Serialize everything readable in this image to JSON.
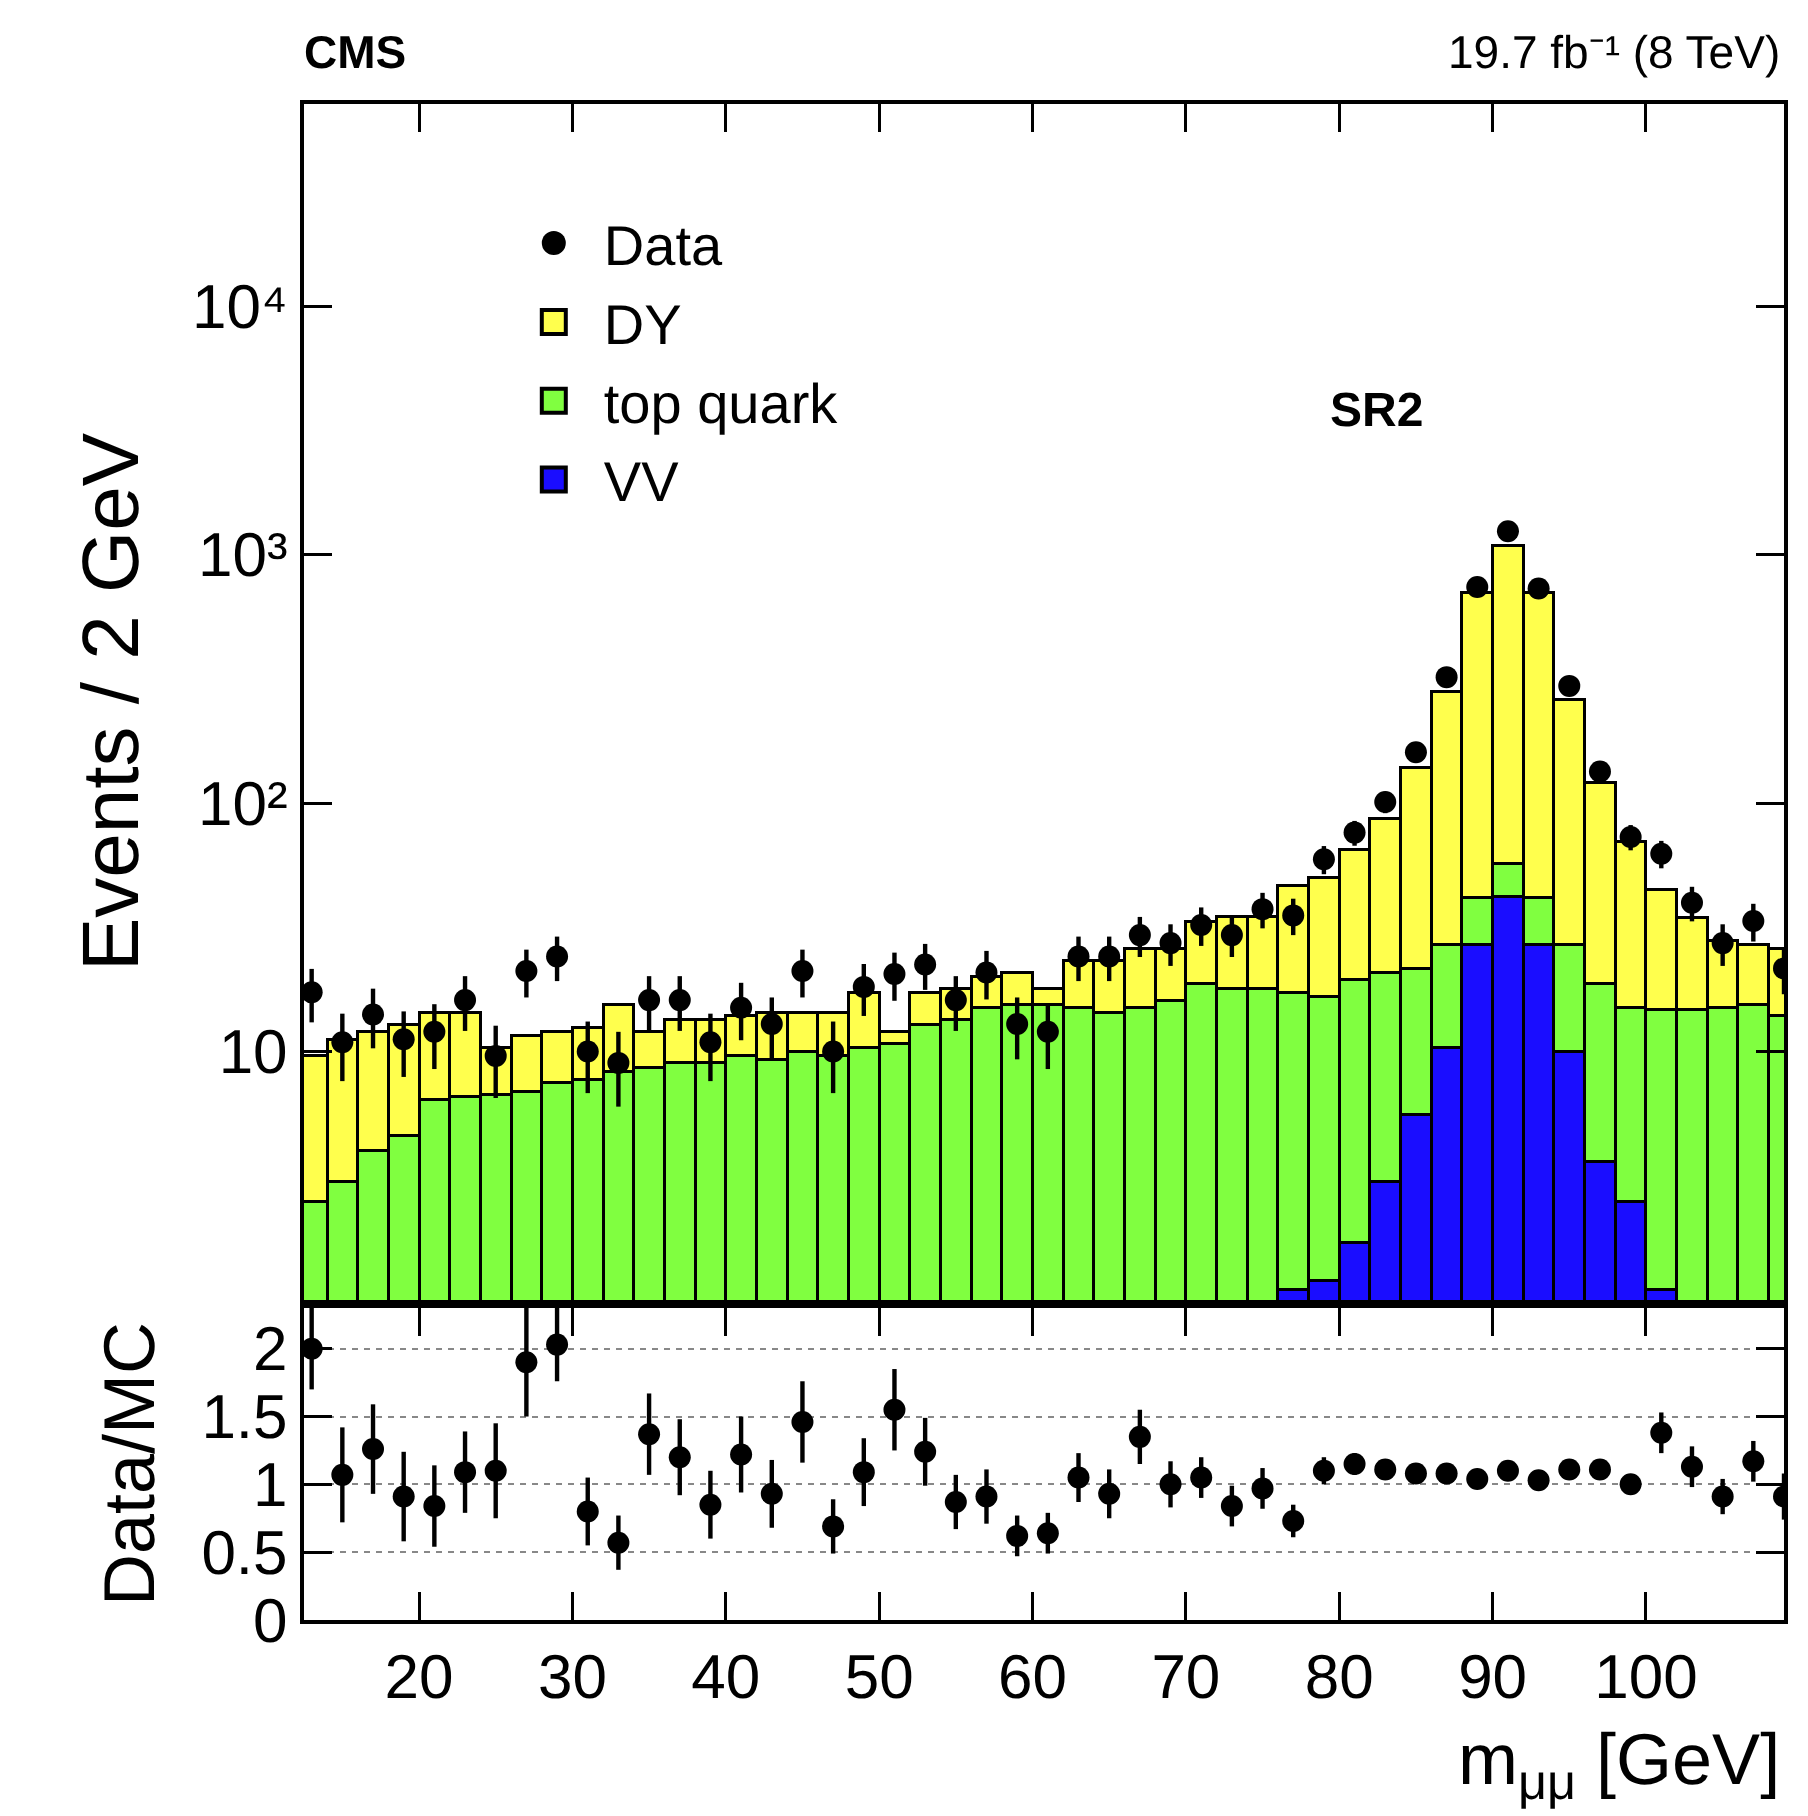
{
  "chart_data": [
    {
      "type": "bar",
      "title": "CMS",
      "subtitle": "19.7 fb⁻¹ (8 TeV)",
      "annotations": [
        "SR2"
      ],
      "ylabel": "Events / 2 GeV",
      "stacked": true,
      "log": "y",
      "legend": "top left",
      "marker": "circle",
      "tick_labels": "y",
      "x": [
        13,
        15,
        17,
        19,
        21,
        23,
        25,
        27,
        29,
        31,
        33,
        35,
        37,
        39,
        41,
        43,
        45,
        47,
        49,
        51,
        53,
        55,
        57,
        59,
        61,
        63,
        65,
        67,
        69,
        71,
        73,
        75,
        77,
        79,
        81,
        83,
        85,
        87,
        89,
        91,
        93,
        95,
        97,
        99,
        101,
        103,
        105,
        107,
        109
      ],
      "xlim": [
        12.5,
        109
      ],
      "xticks": [
        20,
        30,
        40,
        50,
        60,
        70,
        80,
        90,
        100
      ],
      "ylim": [
        1.0,
        65000
      ],
      "yticks": [
        10,
        {
          "value": 100,
          "label": "10²"
        },
        {
          "value": 1000,
          "label": "10³"
        },
        {
          "value": 10000,
          "label": "10⁴"
        }
      ],
      "series": [
        {
          "name": "VV",
          "color": "#1a0dff",
          "values": [
            null,
            null,
            null,
            null,
            null,
            null,
            null,
            null,
            null,
            null,
            null,
            null,
            null,
            null,
            null,
            null,
            null,
            null,
            null,
            null,
            null,
            null,
            null,
            null,
            null,
            null,
            null,
            null,
            null,
            null,
            null,
            null,
            1.1,
            1.2,
            1.7,
            3.0,
            5.6,
            10.4,
            27,
            42,
            27,
            10,
            3.6,
            2.5,
            1.1,
            null,
            null,
            null,
            null
          ]
        },
        {
          "name": "top quark",
          "color": "#80ff40",
          "values": [
            2.5,
            3.0,
            4.0,
            4.6,
            6.4,
            6.6,
            6.7,
            6.9,
            7.5,
            7.7,
            8.3,
            8.6,
            9.0,
            9.0,
            9.6,
            9.3,
            10.0,
            9.6,
            10.4,
            10.8,
            12.9,
            13.4,
            15.0,
            15.5,
            15.5,
            15.0,
            14.4,
            15.0,
            16.1,
            18.7,
            18.0,
            18.0,
            16.2,
            15.5,
            17.7,
            17.8,
            16.0,
            16.5,
            14.8,
            14.9,
            14.8,
            16.9,
            15.1,
            12.5,
            13.6,
            14.7,
            15.0,
            15.5,
            13.9
          ]
        },
        {
          "name": "DY",
          "color": "#ffff4d",
          "values": [
            7.1,
            8.2,
            8.0,
            8.3,
            8.0,
            7.8,
            3.7,
            4.7,
            4.5,
            4.8,
            7.2,
            3.4,
            4.4,
            4.4,
            4.3,
            5.1,
            4.4,
            4.8,
            6.9,
            1.2,
            4.4,
            4.6,
            5.1,
            5.3,
            2.5,
            8.2,
            8.8,
            10.9,
            9.8,
            14.8,
            16.8,
            16.8,
            29.3,
            33.5,
            45.5,
            66,
            118,
            254,
            661,
            1033,
            661,
            234,
            102,
            55,
            30,
            20,
            12.9,
            11.4,
            12.0
          ]
        },
        {
          "name": "Data",
          "type": "scatter",
          "color": "#000000",
          "values": [
            17.3,
            10.9,
            14.1,
            11.2,
            12.0,
            16.1,
            9.6,
            21.1,
            24.1,
            10.0,
            9.0,
            16.1,
            16.1,
            10.9,
            15.0,
            12.9,
            21.1,
            10.0,
            18.2,
            20.5,
            22.4,
            16.1,
            20.8,
            12.9,
            12.0,
            24.1,
            24.1,
            29.4,
            27.3,
            32.3,
            29.4,
            37.4,
            35.3,
            59.4,
            76,
            101,
            160,
            321,
            740,
            1240,
            730,
            296,
            134,
            73,
            62.5,
            39.7,
            27.3,
            33.5,
            21.6
          ],
          "errors": [
            4.2,
            3.3,
            3.8,
            3.3,
            3.5,
            4.0,
            3.1,
            4.6,
            4.9,
            3.2,
            3.0,
            4.0,
            4.0,
            3.3,
            3.9,
            3.6,
            4.6,
            3.2,
            4.3,
            4.5,
            4.7,
            4.0,
            4.6,
            3.6,
            3.5,
            4.9,
            4.9,
            5.4,
            5.2,
            5.7,
            5.4,
            6.1,
            5.9,
            7.7,
            8.7,
            10,
            13,
            18,
            27,
            35,
            27,
            17,
            12,
            8.5,
            7.9,
            6.3,
            5.2,
            5.8,
            4.6
          ]
        }
      ]
    },
    {
      "type": "scatter",
      "xlabel": "m$_{μμ}$ [GeV]",
      "ylabel": "Data/MC",
      "grid": "y",
      "marker": "circle",
      "color": "#000000",
      "x": [
        13,
        15,
        17,
        19,
        21,
        23,
        25,
        27,
        29,
        31,
        33,
        35,
        37,
        39,
        41,
        43,
        45,
        47,
        49,
        51,
        53,
        55,
        57,
        59,
        61,
        63,
        65,
        67,
        69,
        71,
        73,
        75,
        77,
        79,
        81,
        83,
        85,
        87,
        89,
        91,
        93,
        95,
        97,
        99,
        101,
        103,
        105,
        107,
        109
      ],
      "xlim": [
        12.5,
        109
      ],
      "xticks": [
        20,
        30,
        40,
        50,
        60,
        70,
        80,
        90,
        100
      ],
      "ylim": [
        0,
        2.3
      ],
      "yticks": [
        0,
        0.5,
        1,
        1.5,
        2
      ],
      "values": [
        2.0,
        1.07,
        1.26,
        0.91,
        0.84,
        1.09,
        1.1,
        1.9,
        2.03,
        0.8,
        0.57,
        1.37,
        1.2,
        0.85,
        1.22,
        0.93,
        1.46,
        0.69,
        1.09,
        1.55,
        1.24,
        0.87,
        0.91,
        0.62,
        0.64,
        1.05,
        0.93,
        1.35,
        1.0,
        1.05,
        0.84,
        0.97,
        0.73,
        1.1,
        1.15,
        1.11,
        1.08,
        1.08,
        1.04,
        1.1,
        1.03,
        1.11,
        1.11,
        1.0,
        1.38,
        1.13,
        0.91,
        1.17,
        0.91
      ],
      "errors": [
        0.3,
        0.35,
        0.33,
        0.33,
        0.3,
        0.3,
        0.35,
        0.4,
        0.27,
        0.25,
        0.2,
        0.3,
        0.28,
        0.25,
        0.28,
        0.25,
        0.3,
        0.2,
        0.25,
        0.3,
        0.25,
        0.2,
        0.2,
        0.15,
        0.15,
        0.18,
        0.18,
        0.2,
        0.17,
        0.15,
        0.15,
        0.15,
        0.12,
        0.1,
        0.08,
        0.06,
        0.05,
        0.04,
        0.03,
        0.03,
        0.03,
        0.04,
        0.05,
        0.06,
        0.15,
        0.15,
        0.13,
        0.15,
        0.17
      ]
    }
  ]
}
